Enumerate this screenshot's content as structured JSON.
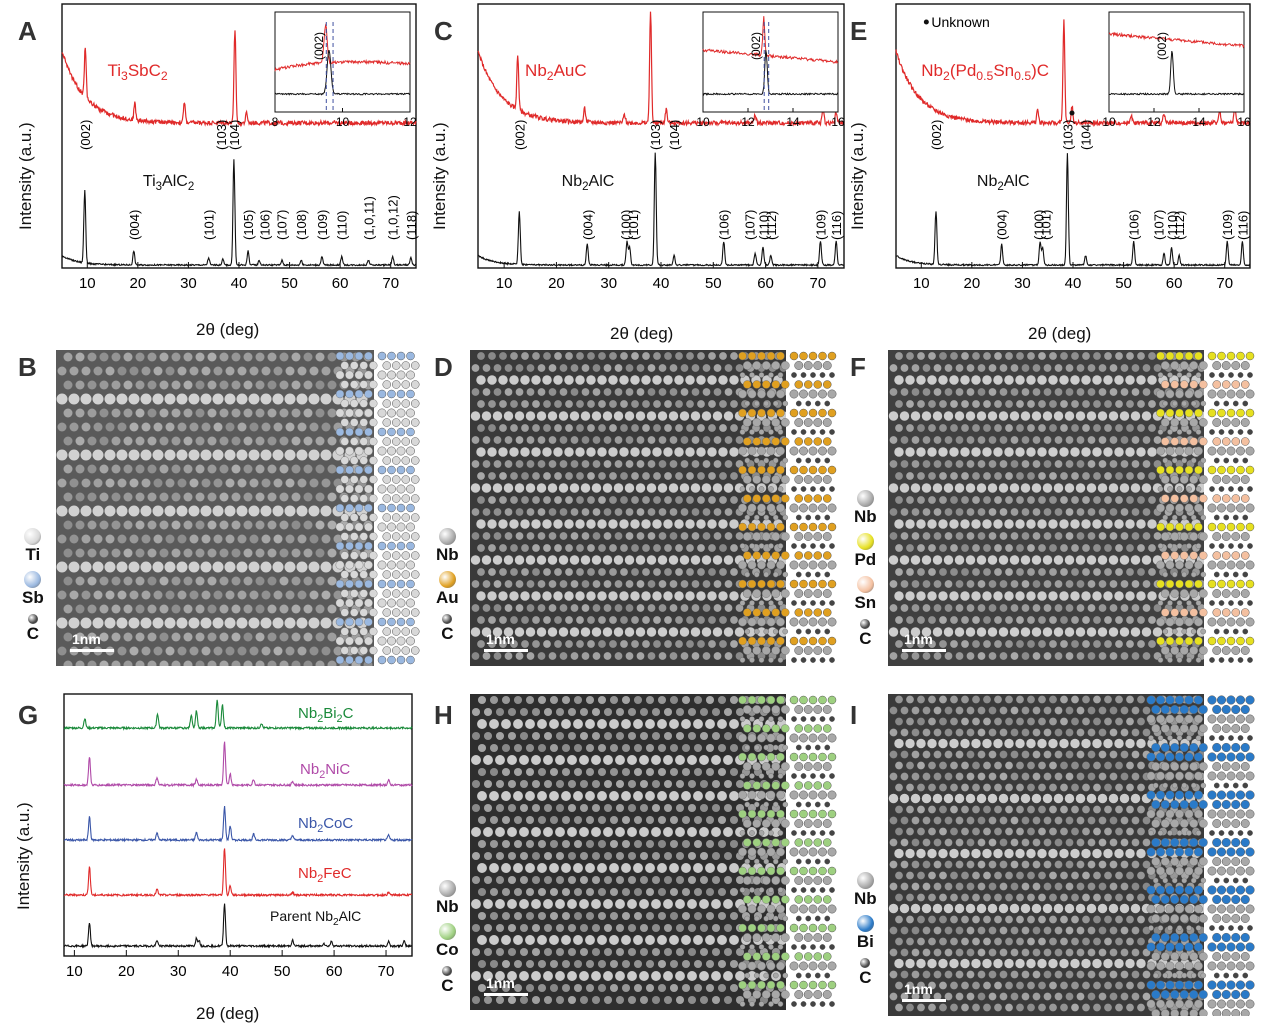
{
  "panel_labels": [
    "A",
    "B",
    "C",
    "D",
    "E",
    "F",
    "G",
    "H",
    "I"
  ],
  "xrd_axis_title": "2θ (deg)",
  "xrd_y_title": "Intensity (a.u.)",
  "colors": {
    "red": "#e02a2a",
    "black": "#111111",
    "green": "#1a8a3a",
    "magenta": "#b04aa8",
    "blue": "#3a56a8",
    "ti": "#d8d8d8",
    "sb": "#9ab8e0",
    "au": "#e0a020",
    "pd": "#e6e020",
    "sn": "#f4c0a0",
    "co": "#9ed080",
    "bi": "#2a7ac8",
    "nb": "#a8a8a8",
    "c": "#444444"
  },
  "chart_data": [
    {
      "type": "line",
      "panel": "A",
      "xlim": [
        5,
        75
      ],
      "xticks": [
        10,
        20,
        30,
        40,
        50,
        60,
        70
      ],
      "series": [
        {
          "name": "Ti3SbC2",
          "color": "red",
          "peaks": [
            [
              9.6,
              0.3
            ],
            [
              19.4,
              0.1
            ],
            [
              29.2,
              0.12
            ],
            [
              39.2,
              0.55
            ],
            [
              41.5,
              0.06
            ]
          ],
          "background": "decay"
        },
        {
          "name": "Ti3AlC2",
          "color": "black",
          "peaks": [
            [
              9.5,
              0.62
            ],
            [
              19.2,
              0.12
            ],
            [
              34.0,
              0.06
            ],
            [
              36.8,
              0.05
            ],
            [
              39.0,
              0.9
            ],
            [
              41.8,
              0.12
            ],
            [
              44.0,
              0.04
            ],
            [
              48.5,
              0.04
            ],
            [
              52.3,
              0.04
            ],
            [
              56.4,
              0.07
            ],
            [
              60.3,
              0.07
            ],
            [
              65.6,
              0.04
            ],
            [
              70.4,
              0.07
            ],
            [
              74.0,
              0.06
            ]
          ],
          "background": "low-decay"
        }
      ],
      "red_label": "Ti3SbC2",
      "black_label": "Ti3AlC2",
      "peak_labels": [
        {
          "t": "(002)",
          "x": 9.5
        },
        {
          "t": "(004)",
          "x": 19.2
        },
        {
          "t": "(101)",
          "x": 34.0
        },
        {
          "t": "(103)",
          "x": 36.4
        },
        {
          "t": "(104)",
          "x": 39.0
        },
        {
          "t": "(105)",
          "x": 41.8
        },
        {
          "t": "(106)",
          "x": 45.0
        },
        {
          "t": "(107)",
          "x": 48.4
        },
        {
          "t": "(108)",
          "x": 52.3
        },
        {
          "t": "(109)",
          "x": 56.4
        },
        {
          "t": "(110)",
          "x": 60.3
        },
        {
          "t": "(1,0,11)",
          "x": 65.6
        },
        {
          "t": "(1,0,12)",
          "x": 70.4
        },
        {
          "t": "(118)",
          "x": 74.0
        }
      ],
      "inset": {
        "xlim": [
          8,
          12
        ],
        "xticks": [
          8,
          10,
          12
        ],
        "peak_label": "(002)"
      }
    },
    {
      "type": "line",
      "panel": "C",
      "xlim": [
        5,
        75
      ],
      "xticks": [
        10,
        20,
        30,
        40,
        50,
        60,
        70
      ],
      "series": [
        {
          "name": "Nb2AuC",
          "color": "red",
          "peaks": [
            [
              12.6,
              0.32
            ],
            [
              25.4,
              0.08
            ],
            [
              33.0,
              0.05
            ],
            [
              38.0,
              0.65
            ],
            [
              41.0,
              0.08
            ],
            [
              58.0,
              0.05
            ],
            [
              71.0,
              0.08
            ],
            [
              73.5,
              0.06
            ]
          ],
          "background": "decay"
        },
        {
          "name": "Nb2AlC",
          "color": "black",
          "peaks": [
            [
              12.9,
              0.45
            ],
            [
              25.9,
              0.18
            ],
            [
              33.5,
              0.2
            ],
            [
              34.0,
              0.15
            ],
            [
              38.9,
              0.95
            ],
            [
              42.5,
              0.08
            ],
            [
              52.0,
              0.2
            ],
            [
              58.0,
              0.1
            ],
            [
              59.5,
              0.15
            ],
            [
              61.0,
              0.08
            ],
            [
              70.5,
              0.2
            ],
            [
              73.5,
              0.2
            ]
          ],
          "background": "low-decay"
        }
      ],
      "red_label": "Nb2AuC",
      "black_label": "Nb2AlC",
      "peak_labels": [
        {
          "t": "(002)",
          "x": 12.9
        },
        {
          "t": "(004)",
          "x": 25.9
        },
        {
          "t": "(100)",
          "x": 33.2
        },
        {
          "t": "(101)",
          "x": 34.6
        },
        {
          "t": "(103)",
          "x": 38.9
        },
        {
          "t": "(104)",
          "x": 42.5
        },
        {
          "t": "(106)",
          "x": 52.0
        },
        {
          "t": "(107)",
          "x": 56.9
        },
        {
          "t": "(110)",
          "x": 59.6
        },
        {
          "t": "(112)",
          "x": 61.0
        },
        {
          "t": "(109)",
          "x": 70.5
        },
        {
          "t": "(116)",
          "x": 73.5
        }
      ],
      "inset": {
        "xlim": [
          10,
          16
        ],
        "xticks": [
          10,
          12,
          14,
          16
        ],
        "peak_label": "(002)"
      }
    },
    {
      "type": "line",
      "panel": "E",
      "xlim": [
        5,
        75
      ],
      "xticks": [
        10,
        20,
        30,
        40,
        50,
        60,
        70
      ],
      "series": [
        {
          "name": "Nb2(Pd0.5Sn0.5)C",
          "color": "red",
          "peaks": [
            [
              33.0,
              0.08
            ],
            [
              38.2,
              0.6
            ],
            [
              39.8,
              0.1
            ],
            [
              51.5,
              0.05
            ],
            [
              58.0,
              0.06
            ],
            [
              69.0,
              0.08
            ],
            [
              72.0,
              0.1
            ]
          ],
          "background": "decay"
        },
        {
          "name": "Nb2AlC",
          "color": "black",
          "peaks": [
            [
              12.9,
              0.45
            ],
            [
              25.9,
              0.18
            ],
            [
              33.5,
              0.2
            ],
            [
              34.0,
              0.15
            ],
            [
              38.9,
              0.95
            ],
            [
              42.5,
              0.08
            ],
            [
              52.0,
              0.2
            ],
            [
              58.0,
              0.1
            ],
            [
              59.5,
              0.15
            ],
            [
              61.0,
              0.08
            ],
            [
              70.5,
              0.2
            ],
            [
              73.5,
              0.2
            ]
          ],
          "background": "low-decay"
        }
      ],
      "red_label": "Nb2(Pd0.5Sn0.5)C",
      "black_label": "Nb2AlC",
      "unknown_label": "Unknown",
      "peak_labels": [
        {
          "t": "(002)",
          "x": 12.9
        },
        {
          "t": "(004)",
          "x": 25.9
        },
        {
          "t": "(100)",
          "x": 33.2
        },
        {
          "t": "(101)",
          "x": 34.6
        },
        {
          "t": "(103)",
          "x": 38.9
        },
        {
          "t": "(104)",
          "x": 42.5
        },
        {
          "t": "(106)",
          "x": 52.0
        },
        {
          "t": "(107)",
          "x": 56.9
        },
        {
          "t": "(110)",
          "x": 59.6
        },
        {
          "t": "(112)",
          "x": 61.0
        },
        {
          "t": "(109)",
          "x": 70.5
        },
        {
          "t": "(116)",
          "x": 73.5
        }
      ],
      "inset": {
        "xlim": [
          10,
          16
        ],
        "xticks": [
          10,
          12,
          14,
          16
        ],
        "peak_label": "(002)"
      }
    },
    {
      "type": "line",
      "panel": "G",
      "xlim": [
        8,
        75
      ],
      "xticks": [
        10,
        20,
        30,
        40,
        50,
        60,
        70
      ],
      "series": [
        {
          "name": "Nb2Bi2C",
          "color": "green",
          "peaks": [
            [
              12.0,
              0.1
            ],
            [
              26.0,
              0.15
            ],
            [
              32.5,
              0.14
            ],
            [
              33.5,
              0.18
            ],
            [
              37.5,
              0.3
            ],
            [
              38.5,
              0.25
            ],
            [
              46.0,
              0.05
            ]
          ]
        },
        {
          "name": "Nb2NiC",
          "color": "magenta",
          "peaks": [
            [
              12.9,
              0.3
            ],
            [
              25.9,
              0.08
            ],
            [
              33.5,
              0.06
            ],
            [
              38.9,
              0.45
            ],
            [
              40.0,
              0.12
            ],
            [
              44.5,
              0.06
            ],
            [
              52.0,
              0.04
            ],
            [
              70.5,
              0.05
            ]
          ]
        },
        {
          "name": "Nb2CoC",
          "color": "blue",
          "peaks": [
            [
              12.9,
              0.25
            ],
            [
              25.9,
              0.08
            ],
            [
              33.5,
              0.08
            ],
            [
              38.9,
              0.35
            ],
            [
              40.0,
              0.15
            ],
            [
              44.5,
              0.06
            ],
            [
              52.0,
              0.05
            ],
            [
              70.5,
              0.05
            ]
          ]
        },
        {
          "name": "Nb2FeC",
          "color": "red",
          "peaks": [
            [
              12.9,
              0.3
            ],
            [
              25.9,
              0.06
            ],
            [
              38.9,
              0.5
            ],
            [
              40.0,
              0.1
            ],
            [
              52.0,
              0.03
            ],
            [
              70.5,
              0.03
            ]
          ]
        },
        {
          "name": "Parent Nb2AlC",
          "color": "black",
          "peaks": [
            [
              12.9,
              0.25
            ],
            [
              25.9,
              0.06
            ],
            [
              33.5,
              0.08
            ],
            [
              34.0,
              0.06
            ],
            [
              38.9,
              0.45
            ],
            [
              52.0,
              0.06
            ],
            [
              58.0,
              0.03
            ],
            [
              59.5,
              0.05
            ],
            [
              70.5,
              0.05
            ],
            [
              73.5,
              0.05
            ]
          ]
        }
      ]
    }
  ],
  "stem": {
    "B": {
      "elements": [
        {
          "sym": "Ti",
          "color": "ti"
        },
        {
          "sym": "Sb",
          "color": "sb"
        },
        {
          "sym": "C",
          "color": "c"
        }
      ],
      "scale": "1nm"
    },
    "D": {
      "elements": [
        {
          "sym": "Nb",
          "color": "nb"
        },
        {
          "sym": "Au",
          "color": "au"
        },
        {
          "sym": "C",
          "color": "c"
        }
      ],
      "scale": "1nm"
    },
    "F": {
      "elements": [
        {
          "sym": "Nb",
          "color": "nb"
        },
        {
          "sym": "Pd",
          "color": "pd"
        },
        {
          "sym": "Sn",
          "color": "sn"
        },
        {
          "sym": "C",
          "color": "c"
        }
      ],
      "scale": "1nm"
    },
    "H": {
      "elements": [
        {
          "sym": "Nb",
          "color": "nb"
        },
        {
          "sym": "Co",
          "color": "co"
        },
        {
          "sym": "C",
          "color": "c"
        }
      ],
      "scale": "1nm"
    },
    "I": {
      "elements": [
        {
          "sym": "Nb",
          "color": "nb"
        },
        {
          "sym": "Bi",
          "color": "bi"
        },
        {
          "sym": "C",
          "color": "c"
        }
      ],
      "scale": "1nm"
    }
  }
}
